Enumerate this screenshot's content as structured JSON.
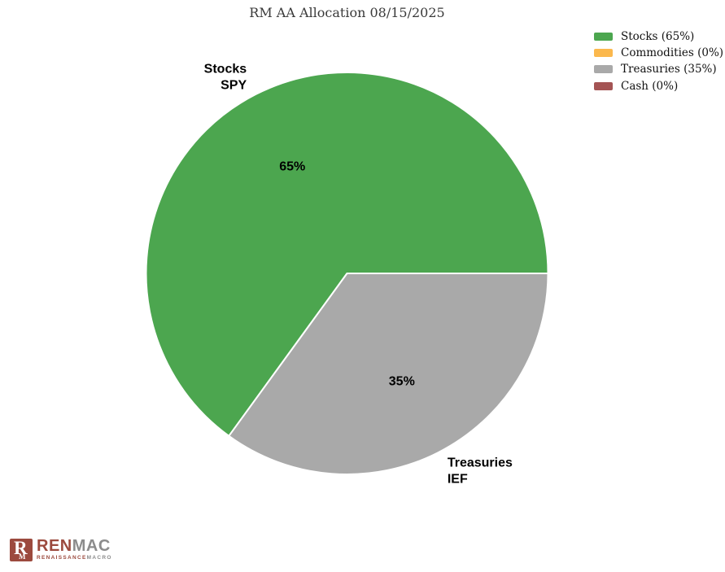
{
  "title": "RM AA Allocation 08/15/2025",
  "chart_data": {
    "type": "pie",
    "title": "RM AA Allocation 08/15/2025",
    "categories": [
      "Stocks",
      "Commodities",
      "Treasuries",
      "Cash"
    ],
    "values": [
      65,
      0,
      35,
      0
    ],
    "colors": [
      "#4CA64F",
      "#FBB84D",
      "#A9A9A9",
      "#A45454"
    ],
    "start_angle_deg": 0,
    "direction": "counterclockwise",
    "legend_position": "upper right",
    "legend": [
      {
        "label": "Stocks (65%)",
        "color": "#4CA64F"
      },
      {
        "label": "Commodities (0%)",
        "color": "#FBB84D"
      },
      {
        "label": "Treasuries (35%)",
        "color": "#A9A9A9"
      },
      {
        "label": "Cash (0%)",
        "color": "#A45454"
      }
    ],
    "slice_pct_labels": [
      "65%",
      null,
      "35%",
      null
    ],
    "slice_outer_labels": [
      [
        "Stocks",
        "SPY"
      ],
      null,
      [
        "Treasuries",
        "IEF"
      ],
      null
    ]
  },
  "logo": {
    "icon_letter": "R",
    "icon_sub_letter": "M",
    "wordmark_part1": "REN",
    "wordmark_part2": "MAC",
    "subtext_part1": "RENAISSANCE",
    "subtext_part2": "MACRO",
    "brand_red": "#9C4A3E",
    "brand_gray": "#8C8C8C"
  }
}
